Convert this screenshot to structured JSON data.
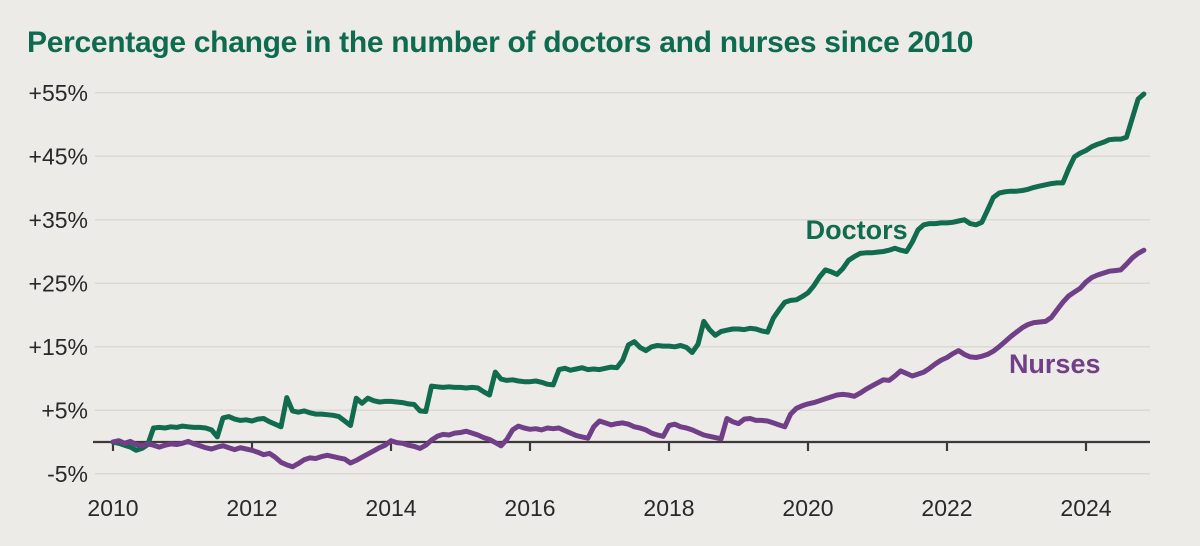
{
  "header": {
    "title": "Percentage change in the number of doctors and nurses since 2010",
    "title_color": "#0E6B50"
  },
  "chart_data": {
    "type": "line",
    "title": "Percentage change in the number of doctors and nurses since 2010",
    "x_axis": {
      "start_year": 2010,
      "points_per_year": 12,
      "end_label": "2024",
      "ticks": [
        {
          "value": 2010,
          "label": "2010"
        },
        {
          "value": 2012,
          "label": "2012"
        },
        {
          "value": 2014,
          "label": "2014"
        },
        {
          "value": 2016,
          "label": "2016"
        },
        {
          "value": 2018,
          "label": "2018"
        },
        {
          "value": 2020,
          "label": "2020"
        },
        {
          "value": 2022,
          "label": "2022"
        },
        {
          "value": 2024,
          "label": "2024"
        }
      ]
    },
    "y_axis": {
      "unit": "%",
      "range": [
        -5,
        55
      ],
      "ticks": [
        {
          "value": 55,
          "label": "+55%"
        },
        {
          "value": 45,
          "label": "+45%"
        },
        {
          "value": 35,
          "label": "+35%"
        },
        {
          "value": 25,
          "label": "+25%"
        },
        {
          "value": 15,
          "label": "+15%"
        },
        {
          "value": 5,
          "label": "+5%"
        },
        {
          "value": -5,
          "label": "-5%"
        }
      ]
    },
    "grid": "horizontal",
    "legend_position": "inline-annotations",
    "colors": {
      "background": "#EDEBE8",
      "grid": "#DCD9D5",
      "axis": "#3B3A38",
      "tick_text": "#29282A"
    },
    "series": [
      {
        "name": "Doctors",
        "color": "#116B4F",
        "label_position": {
          "year": 2020.7,
          "value": 33.4
        },
        "values": [
          0,
          -0.2,
          -0.5,
          -0.8,
          -1.3,
          -1.0,
          -0.4,
          2.2,
          2.3,
          2.2,
          2.4,
          2.3,
          2.5,
          2.4,
          2.3,
          2.3,
          2.2,
          1.9,
          0.8,
          3.8,
          4.0,
          3.6,
          3.4,
          3.5,
          3.3,
          3.6,
          3.7,
          3.2,
          2.8,
          2.4,
          7.0,
          4.9,
          4.7,
          4.9,
          4.6,
          4.4,
          4.4,
          4.3,
          4.2,
          4.0,
          3.3,
          2.6,
          6.9,
          6.1,
          6.9,
          6.5,
          6.3,
          6.4,
          6.4,
          6.3,
          6.2,
          6.0,
          5.9,
          4.9,
          4.8,
          8.8,
          8.7,
          8.6,
          8.7,
          8.6,
          8.6,
          8.5,
          8.6,
          8.5,
          7.9,
          7.4,
          11.0,
          9.9,
          9.7,
          9.8,
          9.6,
          9.5,
          9.5,
          9.6,
          9.4,
          9.1,
          9.0,
          11.4,
          11.6,
          11.3,
          11.5,
          11.7,
          11.4,
          11.5,
          11.4,
          11.6,
          11.8,
          11.7,
          12.9,
          15.3,
          15.8,
          14.9,
          14.4,
          15.0,
          15.2,
          15.1,
          15.1,
          15.0,
          15.2,
          14.9,
          14.1,
          15.4,
          19.0,
          17.7,
          16.8,
          17.4,
          17.6,
          17.8,
          17.8,
          17.7,
          17.9,
          17.8,
          17.5,
          17.3,
          19.5,
          20.8,
          22.0,
          22.3,
          22.4,
          22.9,
          23.5,
          24.6,
          26.0,
          27.1,
          26.8,
          26.4,
          27.3,
          28.6,
          29.2,
          29.7,
          29.8,
          29.8,
          29.9,
          30.0,
          30.2,
          30.5,
          30.2,
          30.0,
          31.5,
          33.4,
          34.2,
          34.4,
          34.4,
          34.5,
          34.5,
          34.6,
          34.8,
          35.0,
          34.4,
          34.2,
          34.6,
          36.5,
          38.5,
          39.2,
          39.4,
          39.5,
          39.5,
          39.6,
          39.8,
          40.1,
          40.3,
          40.5,
          40.7,
          40.8,
          40.8,
          43.0,
          44.9,
          45.5,
          45.9,
          46.5,
          46.9,
          47.2,
          47.6,
          47.7,
          47.7,
          48.0,
          51.0,
          54.0,
          54.8
        ]
      },
      {
        "name": "Nurses",
        "color": "#703F88",
        "label_position": {
          "year": 2023.55,
          "value": 12.3
        },
        "values": [
          0,
          0.2,
          -0.2,
          0.1,
          -0.4,
          -0.6,
          -0.3,
          -0.5,
          -0.8,
          -0.5,
          -0.3,
          -0.4,
          -0.2,
          0.1,
          -0.3,
          -0.6,
          -0.9,
          -1.1,
          -0.8,
          -0.6,
          -0.9,
          -1.2,
          -0.9,
          -1.1,
          -1.3,
          -1.6,
          -2.0,
          -1.8,
          -2.4,
          -3.2,
          -3.6,
          -3.9,
          -3.4,
          -2.8,
          -2.5,
          -2.6,
          -2.3,
          -2.1,
          -2.3,
          -2.5,
          -2.7,
          -3.3,
          -2.9,
          -2.4,
          -1.9,
          -1.4,
          -0.9,
          -0.5,
          0.2,
          -0.1,
          -0.2,
          -0.5,
          -0.7,
          -1.0,
          -0.5,
          0.3,
          0.9,
          1.2,
          1.1,
          1.4,
          1.5,
          1.7,
          1.4,
          1.1,
          0.7,
          0.4,
          -0.1,
          -0.6,
          0.4,
          1.9,
          2.5,
          2.2,
          2.0,
          2.1,
          1.9,
          2.2,
          2.1,
          2.2,
          1.8,
          1.4,
          1.0,
          0.8,
          0.6,
          2.4,
          3.3,
          3.0,
          2.7,
          2.9,
          3.0,
          2.8,
          2.4,
          2.2,
          1.9,
          1.4,
          1.1,
          0.9,
          2.6,
          2.8,
          2.4,
          2.2,
          1.9,
          1.5,
          1.1,
          0.9,
          0.7,
          0.5,
          3.7,
          3.2,
          2.9,
          3.6,
          3.7,
          3.4,
          3.4,
          3.3,
          3.0,
          2.7,
          2.4,
          4.4,
          5.3,
          5.7,
          6.0,
          6.2,
          6.5,
          6.8,
          7.1,
          7.4,
          7.5,
          7.4,
          7.2,
          7.7,
          8.3,
          8.8,
          9.3,
          9.8,
          9.7,
          10.4,
          11.2,
          10.8,
          10.4,
          10.7,
          11.0,
          11.6,
          12.3,
          12.9,
          13.3,
          13.9,
          14.4,
          13.8,
          13.4,
          13.3,
          13.5,
          13.8,
          14.3,
          15.0,
          15.8,
          16.6,
          17.3,
          18.0,
          18.5,
          18.8,
          18.9,
          19.0,
          19.6,
          20.8,
          22.0,
          23.0,
          23.6,
          24.2,
          25.2,
          25.9,
          26.3,
          26.6,
          26.9,
          27.0,
          27.1,
          28.0,
          29.0,
          29.7,
          30.2
        ]
      }
    ]
  }
}
